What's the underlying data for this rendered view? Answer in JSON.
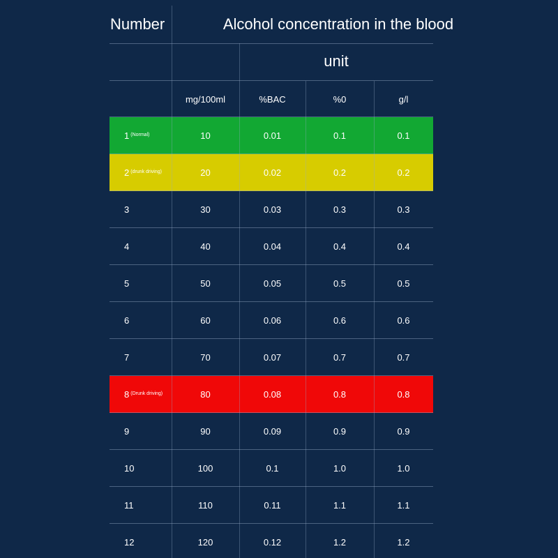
{
  "table": {
    "header": {
      "number_label": "Number",
      "title": "Alcohol concentration in the blood",
      "unit_label": "unit"
    },
    "units": [
      "mg/100ml",
      "%BAC",
      "%0",
      "g/l"
    ],
    "colors": {
      "background": "#0f2848",
      "normal": "#12a833",
      "drunk_driving_low": "#d7cc00",
      "drunk_driving_high": "#f00808"
    },
    "rows": [
      {
        "number": "1",
        "note": "(Normal)",
        "highlight": "normal",
        "values": [
          "10",
          "0.01",
          "0.1",
          "0.1"
        ]
      },
      {
        "number": "2",
        "note": "(drunk driving)",
        "highlight": "drunk_driving_low",
        "values": [
          "20",
          "0.02",
          "0.2",
          "0.2"
        ]
      },
      {
        "number": "3",
        "note": "",
        "highlight": "",
        "values": [
          "30",
          "0.03",
          "0.3",
          "0.3"
        ]
      },
      {
        "number": "4",
        "note": "",
        "highlight": "",
        "values": [
          "40",
          "0.04",
          "0.4",
          "0.4"
        ]
      },
      {
        "number": "5",
        "note": "",
        "highlight": "",
        "values": [
          "50",
          "0.05",
          "0.5",
          "0.5"
        ]
      },
      {
        "number": "6",
        "note": "",
        "highlight": "",
        "values": [
          "60",
          "0.06",
          "0.6",
          "0.6"
        ]
      },
      {
        "number": "7",
        "note": "",
        "highlight": "",
        "values": [
          "70",
          "0.07",
          "0.7",
          "0.7"
        ]
      },
      {
        "number": "8",
        "note": "(Drunk driving)",
        "highlight": "drunk_driving_high",
        "values": [
          "80",
          "0.08",
          "0.8",
          "0.8"
        ]
      },
      {
        "number": "9",
        "note": "",
        "highlight": "",
        "values": [
          "90",
          "0.09",
          "0.9",
          "0.9"
        ]
      },
      {
        "number": "10",
        "note": "",
        "highlight": "",
        "values": [
          "100",
          "0.1",
          "1.0",
          "1.0"
        ]
      },
      {
        "number": "11",
        "note": "",
        "highlight": "",
        "values": [
          "110",
          "0.11",
          "1.1",
          "1.1"
        ]
      },
      {
        "number": "12",
        "note": "",
        "highlight": "",
        "values": [
          "120",
          "0.12",
          "1.2",
          "1.2"
        ]
      }
    ]
  }
}
